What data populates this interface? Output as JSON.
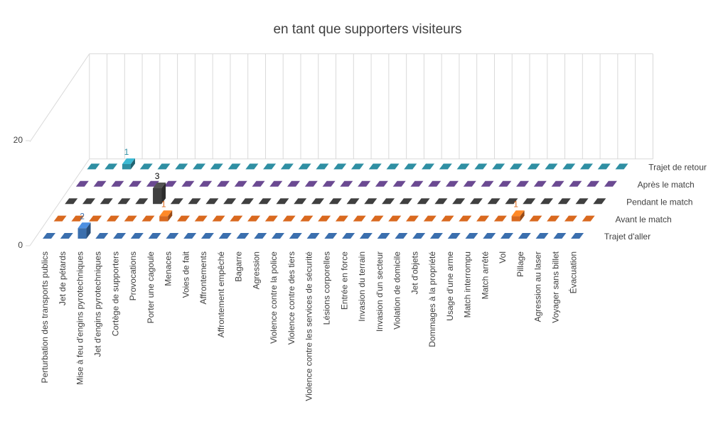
{
  "chart_data": {
    "type": "bar3d",
    "title": "en tant que supporters visiteurs",
    "categories": [
      "Perturbation des transports publics",
      "Jet de pétards",
      "Mise à feu d'engins pyrotechniques",
      "Jet d'engins pyrotechniques",
      "Cortège de supporters",
      "Provocations",
      "Porter une cagoule",
      "Menaces",
      "Voies de fait",
      "Affrontements",
      "Affrontement empêché",
      "Bagarre",
      "Agression",
      "Violence contre la police",
      "Violence contre des tiers",
      "Violence contre les services de sécurité",
      "Lésions corporelles",
      "Entrée en force",
      "Invasion du terrain",
      "Invasion d'un secteur",
      "Violation de domicile",
      "Jet d'objets",
      "Dommages à la propriété",
      "Usage d'une arme",
      "Match interrompu",
      "Match arrêté",
      "Vol",
      "Pillage",
      "Agression au laser",
      "Voyager sans billet",
      "Évacuation"
    ],
    "series": [
      {
        "name": "Trajet d'aller",
        "color": "#3b6fae",
        "values": [
          0,
          0,
          2,
          0,
          0,
          0,
          0,
          0,
          0,
          0,
          0,
          0,
          0,
          0,
          0,
          0,
          0,
          0,
          0,
          0,
          0,
          0,
          0,
          0,
          0,
          0,
          0,
          0,
          0,
          0,
          0
        ]
      },
      {
        "name": "Avant le match",
        "color": "#d9691f",
        "values": [
          0,
          0,
          0,
          0,
          0,
          0,
          1,
          0,
          0,
          0,
          0,
          0,
          0,
          0,
          0,
          0,
          0,
          0,
          0,
          0,
          0,
          0,
          0,
          0,
          0,
          0,
          1,
          0,
          0,
          0,
          0
        ]
      },
      {
        "name": "Pendant le match",
        "color": "#404040",
        "values": [
          0,
          0,
          0,
          0,
          0,
          3,
          0,
          0,
          0,
          0,
          0,
          0,
          0,
          0,
          0,
          0,
          0,
          0,
          0,
          0,
          0,
          0,
          0,
          0,
          0,
          0,
          0,
          0,
          0,
          0,
          0
        ]
      },
      {
        "name": "Après le match",
        "color": "#6b4a92",
        "values": [
          0,
          0,
          0,
          0,
          0,
          0,
          0,
          0,
          0,
          0,
          0,
          0,
          0,
          0,
          0,
          0,
          0,
          0,
          0,
          0,
          0,
          0,
          0,
          0,
          0,
          0,
          0,
          0,
          0,
          0,
          0
        ]
      },
      {
        "name": "Trajet de retour",
        "color": "#2f8fa3",
        "values": [
          0,
          0,
          1,
          0,
          0,
          0,
          0,
          0,
          0,
          0,
          0,
          0,
          0,
          0,
          0,
          0,
          0,
          0,
          0,
          0,
          0,
          0,
          0,
          0,
          0,
          0,
          0,
          0,
          0,
          0,
          0
        ]
      }
    ],
    "ylim": [
      0,
      20
    ],
    "yticks": [
      0,
      20
    ],
    "grid": true
  }
}
